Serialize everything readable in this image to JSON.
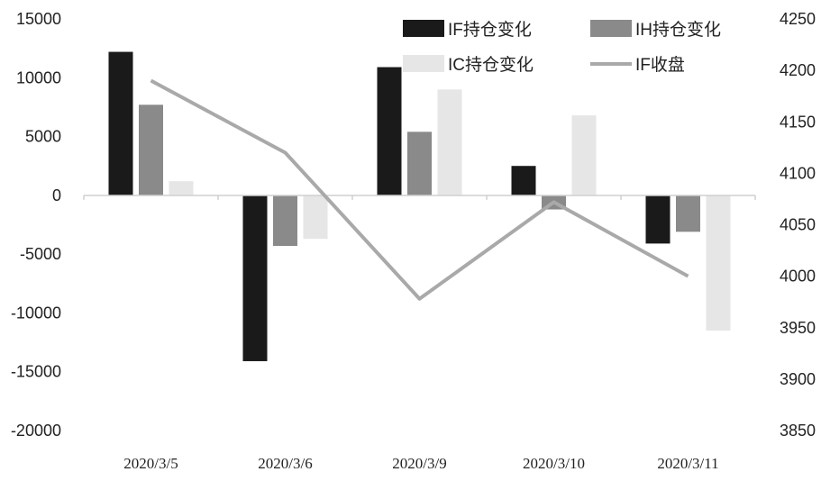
{
  "chart_data": {
    "type": "bar",
    "categories": [
      "2020/3/5",
      "2020/3/6",
      "2020/3/9",
      "2020/3/10",
      "2020/3/11"
    ],
    "series": [
      {
        "name": "IF持仓变化",
        "type": "bar",
        "axis": "left",
        "color": "#1a1a1a",
        "values": [
          12200,
          -14100,
          10900,
          2500,
          -4100
        ]
      },
      {
        "name": "IH持仓变化",
        "type": "bar",
        "axis": "left",
        "color": "#8a8a8a",
        "values": [
          7700,
          -4300,
          5400,
          -1200,
          -3100
        ]
      },
      {
        "name": "IC持仓变化",
        "type": "bar",
        "axis": "left",
        "color": "#e6e6e6",
        "values": [
          1200,
          -3700,
          9000,
          6800,
          -11500
        ]
      },
      {
        "name": "IF收盘",
        "type": "line",
        "axis": "right",
        "color": "#a9a9a9",
        "values": [
          4190,
          4120,
          3978,
          4072,
          4000
        ]
      }
    ],
    "y_left": {
      "ylim": [
        -20000,
        15000
      ],
      "ticks": [
        "15000",
        "10000",
        "5000",
        "0",
        "-5000",
        "-10000",
        "-15000",
        "-20000"
      ]
    },
    "y_right": {
      "ylim": [
        3850,
        4250
      ],
      "ticks": [
        "4250",
        "4200",
        "4150",
        "4100",
        "4050",
        "4000",
        "3950",
        "3900",
        "3850"
      ]
    },
    "grid": false,
    "legend": "top-right"
  }
}
